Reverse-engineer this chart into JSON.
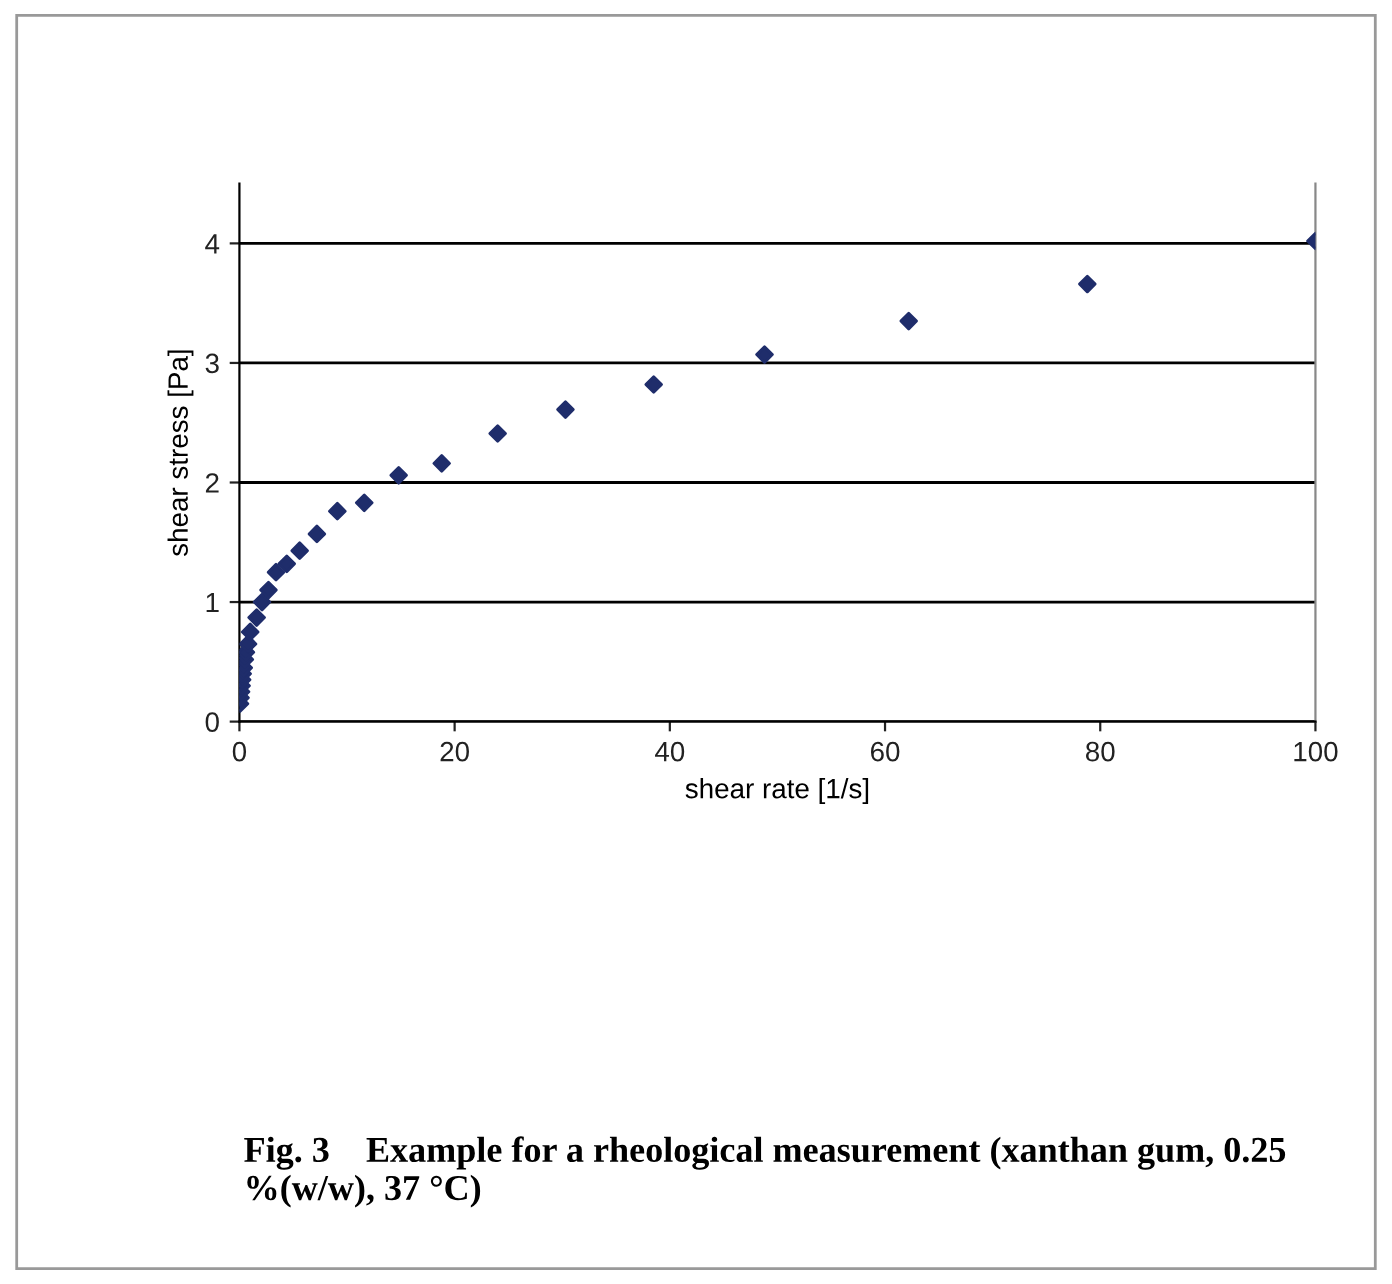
{
  "chart_data": {
    "type": "scatter",
    "xlabel": "shear rate [1/s]",
    "ylabel": "shear stress [Pa]",
    "x": [
      0.05,
      0.1,
      0.15,
      0.2,
      0.25,
      0.3,
      0.4,
      0.5,
      0.6,
      0.8,
      1.0,
      1.3,
      1.6,
      2.1,
      2.7,
      3.4,
      4.4,
      5.6,
      7.2,
      9.1,
      11.6,
      14.8,
      18.8,
      24,
      30.3,
      38.5,
      48.8,
      62.2,
      78.8,
      100
    ],
    "series": [
      {
        "color": "#1f2d6b",
        "values": [
          0.15,
          0.2,
          0.25,
          0.3,
          0.35,
          0.4,
          0.45,
          0.52,
          0.58,
          0.65,
          0.75,
          null,
          0.87,
          1.0,
          1.1,
          1.25,
          1.32,
          1.43,
          1.57,
          1.76,
          1.83,
          2.06,
          2.16,
          2.41,
          2.61,
          2.82,
          3.07,
          3.35,
          3.66,
          4.02
        ]
      }
    ],
    "xlim": [
      0,
      100
    ],
    "xticks": [
      0,
      20,
      40,
      60,
      80,
      100
    ],
    "ylim": [
      0,
      4.5
    ],
    "yticks": [
      0,
      1,
      2,
      3,
      4
    ],
    "grid": "y",
    "marker": "diamond",
    "legend": false,
    "annotations": [
      "Fig. 3    Example for a rheological measurement (xanthan gum, 0.25 %(w/w), 37 °C)"
    ]
  }
}
